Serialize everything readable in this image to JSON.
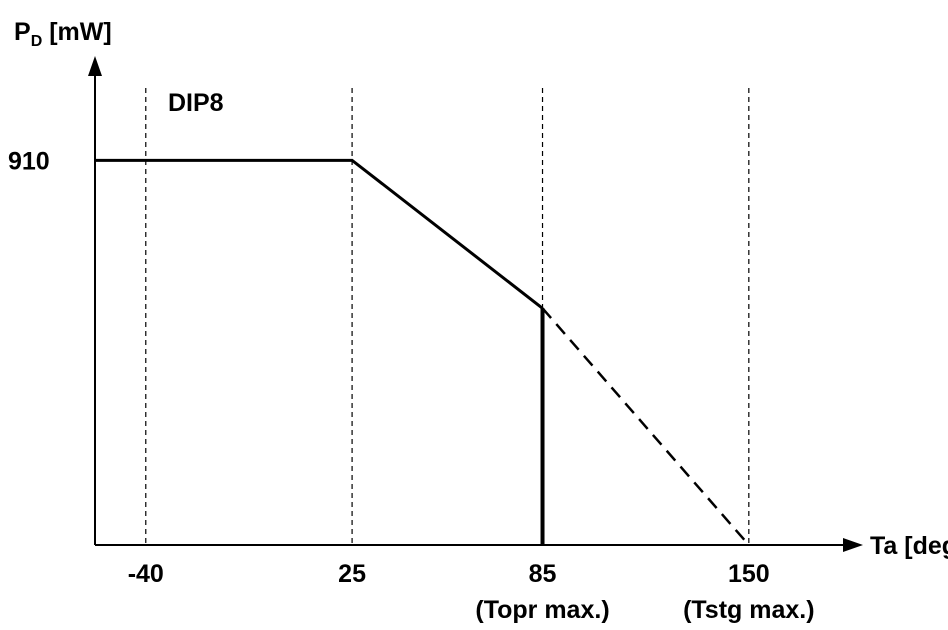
{
  "chart_data": {
    "type": "line",
    "title": "",
    "ylabel_main": "P",
    "ylabel_sub": "D",
    "ylabel_unit": " [mW]",
    "xlabel": "Ta [deg]",
    "y_ticks": [
      {
        "value": 910,
        "label": "910"
      }
    ],
    "x_ticks": [
      {
        "value": -40,
        "label": "-40",
        "note": ""
      },
      {
        "value": 25,
        "label": "25",
        "note": ""
      },
      {
        "value": 85,
        "label": "85",
        "note": "(Topr max.)"
      },
      {
        "value": 150,
        "label": "150",
        "note": "(Tstg max.)"
      }
    ],
    "xlim": [
      -56,
      174
    ],
    "ylim": [
      0,
      1100
    ],
    "reference_lines_x": [
      -40,
      25,
      85,
      150
    ],
    "series": [
      {
        "name": "DIP8",
        "solid": [
          {
            "x": -56,
            "y": 910
          },
          {
            "x": 25,
            "y": 910
          },
          {
            "x": 85,
            "y": 560
          }
        ],
        "dashed": [
          {
            "x": 85,
            "y": 560
          },
          {
            "x": 150,
            "y": 0
          }
        ],
        "drop": {
          "x": 85,
          "from_y": 560,
          "to_y": 0
        }
      }
    ],
    "grid": false,
    "legend": "none",
    "colors": {
      "line": "#000000",
      "axis": "#000000",
      "background": "#ffffff"
    }
  }
}
